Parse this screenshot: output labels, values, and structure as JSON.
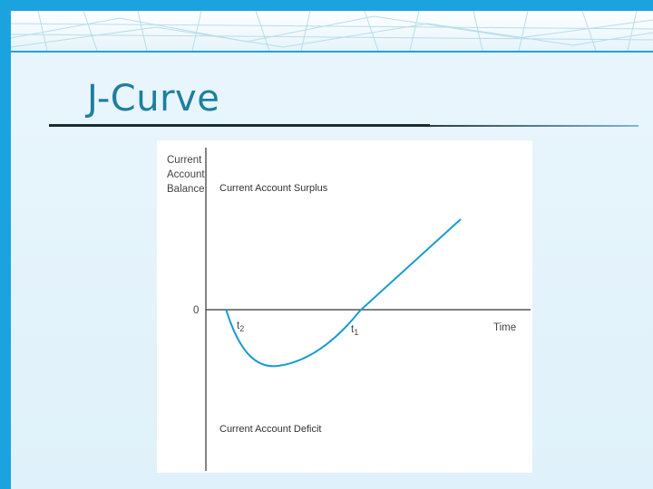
{
  "slide": {
    "title": "J-Curve"
  },
  "diagram": {
    "y_axis_label": [
      "Current",
      "Account",
      "Balance"
    ],
    "surplus_label": "Current Account Surplus",
    "deficit_label": "Current Account Deficit",
    "zero_label": "0",
    "x_axis_label": "Time",
    "t2_label": "t",
    "t2_sub": "2",
    "t1_label": "t",
    "t1_sub": "1",
    "colors": {
      "curve": "#1a9bd0",
      "axis": "#333333",
      "title": "#1d7fa0",
      "accent": "#1aa3df"
    }
  }
}
